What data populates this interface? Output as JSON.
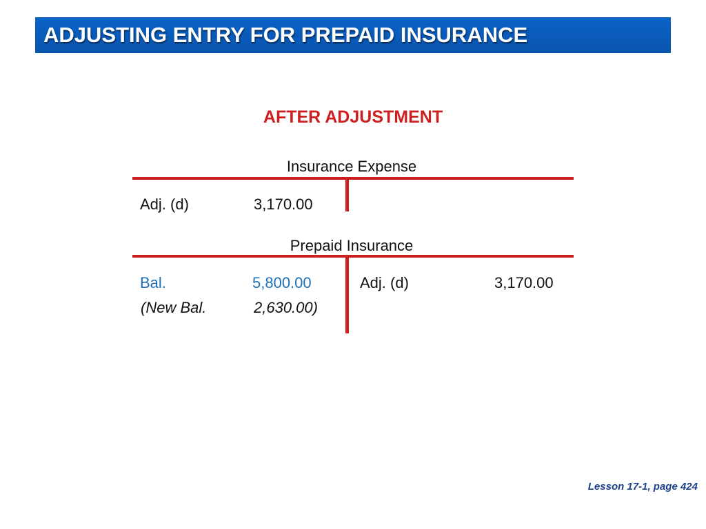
{
  "header": {
    "title": "ADJUSTING ENTRY FOR PREPAID INSURANCE"
  },
  "subtitle": "AFTER ADJUSTMENT",
  "accounts": [
    {
      "name": "Insurance Expense",
      "debit": [
        {
          "label": "Adj. (d)",
          "amount": "3,170.00"
        }
      ],
      "credit": []
    },
    {
      "name": "Prepaid Insurance",
      "debit": [
        {
          "label": "Bal.",
          "amount": "5,800.00"
        },
        {
          "label": "(New Bal.",
          "amount": "2,630.00)"
        }
      ],
      "credit": [
        {
          "label": "Adj. (d)",
          "amount": "3,170.00"
        }
      ]
    }
  ],
  "colors": {
    "title_bar": "#0a5ab8",
    "accent_red": "#cc1f1f",
    "balance_blue": "#1f6fb5",
    "footer_blue": "#1a3f8c"
  },
  "footer": "Lesson 17-1, page 424"
}
